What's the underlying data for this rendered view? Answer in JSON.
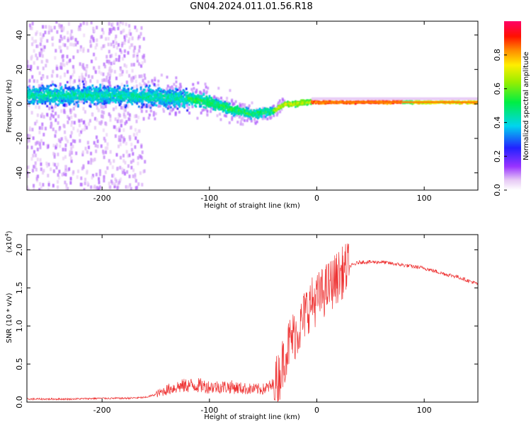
{
  "title": "GN04.2024.011.01.56.R18",
  "colorbar": {
    "label": "Normalized spectral amplitude",
    "ticks": [
      "0.0",
      "0.2",
      "0.4",
      "0.6",
      "0.8"
    ],
    "tick_values": [
      0.0,
      0.2,
      0.4,
      0.6,
      0.8
    ],
    "range": [
      0,
      1
    ]
  },
  "chart_data": [
    {
      "type": "heatmap",
      "title": "",
      "xlabel": "Height of straight line (km)",
      "ylabel": "Frequency (Hz)",
      "xlim": [
        -270,
        150
      ],
      "ylim": [
        -50,
        48
      ],
      "xticks": [
        -200,
        -100,
        0,
        100
      ],
      "xtick_labels": [
        "-200",
        "-100",
        "0",
        "100"
      ],
      "yticks": [
        -40,
        -20,
        0,
        20,
        40
      ],
      "ytick_labels": [
        "-40",
        "-20",
        "0",
        "20",
        "40"
      ],
      "description_series": {
        "name": "ridge_center_frequency",
        "x": [
          -270,
          -200,
          -150,
          -120,
          -100,
          -80,
          -60,
          -40,
          -30,
          -20,
          -10,
          0,
          50,
          80,
          100,
          150
        ],
        "y": [
          5,
          5,
          4,
          3,
          1,
          -3,
          -6,
          -4,
          0,
          0,
          1,
          1,
          1,
          1,
          1,
          1
        ]
      }
    },
    {
      "type": "line",
      "title": "",
      "xlabel": "Height of straight line (km)",
      "ylabel": "SNR (10 * v/v)",
      "scale_label": "(x10",
      "scale_exp": "4",
      "scale_close": ")",
      "xlim": [
        -270,
        150
      ],
      "ylim": [
        0,
        2.2
      ],
      "xticks": [
        -200,
        -100,
        0,
        100
      ],
      "xtick_labels": [
        "-200",
        "-100",
        "0",
        "100"
      ],
      "yticks": [
        0.0,
        0.5,
        1.0,
        1.5,
        2.0
      ],
      "ytick_labels": [
        "0.0",
        "0.5",
        "1.0",
        "1.5",
        "2.0"
      ],
      "color": "#ee3333",
      "series": [
        {
          "x": [
            -270,
            -250,
            -230,
            -200,
            -180,
            -160,
            -150,
            -140,
            -130,
            -120,
            -110,
            -100,
            -90,
            -80,
            -70,
            -60,
            -50,
            -40,
            -35,
            -30,
            -25,
            -20,
            -15,
            -10,
            -5,
            0,
            10,
            20,
            30,
            40,
            50,
            60,
            70,
            80,
            90,
            100,
            110,
            120,
            130,
            140,
            150
          ],
          "values": [
            0.04,
            0.04,
            0.04,
            0.05,
            0.05,
            0.06,
            0.1,
            0.16,
            0.2,
            0.22,
            0.22,
            0.2,
            0.2,
            0.2,
            0.18,
            0.17,
            0.17,
            0.22,
            0.35,
            0.6,
            0.8,
            0.9,
            1.0,
            1.2,
            1.3,
            1.35,
            1.5,
            1.65,
            1.78,
            1.84,
            1.84,
            1.84,
            1.82,
            1.8,
            1.78,
            1.76,
            1.72,
            1.68,
            1.65,
            1.6,
            1.55
          ]
        }
      ]
    }
  ]
}
